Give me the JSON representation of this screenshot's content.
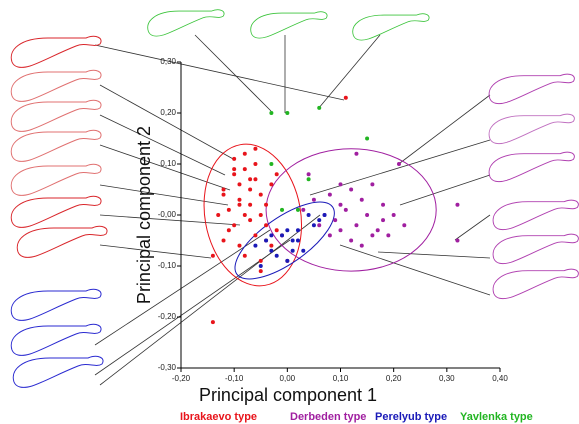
{
  "chart_data": {
    "type": "scatter",
    "xlabel": "Principal component 1",
    "ylabel": "Principal component 2",
    "xlim": [
      -0.2,
      0.4
    ],
    "xticks": [
      {
        "value": -0.2,
        "label": "-0,20"
      },
      {
        "value": -0.1,
        "label": "-0,10"
      },
      {
        "value": 0,
        "label": "0,00"
      },
      {
        "value": 0.1,
        "label": "0,10"
      },
      {
        "value": 0.2,
        "label": "0,20"
      },
      {
        "value": 0.3,
        "label": "0,30"
      },
      {
        "value": 0.4,
        "label": "0,40"
      }
    ],
    "ylim": [
      -0.3,
      0.3
    ],
    "yticks": [
      {
        "value": -0.3,
        "label": "-0,30"
      },
      {
        "value": -0.2,
        "label": "-0,20"
      },
      {
        "value": -0.1,
        "label": "-0,10"
      },
      {
        "value": 0,
        "label": "-0,00"
      },
      {
        "value": 0.1,
        "label": "0,10"
      },
      {
        "value": 0.2,
        "label": "0,20"
      },
      {
        "value": 0.3,
        "label": "0,30"
      }
    ],
    "series": [
      {
        "name": "Ibrakaevo type",
        "color": "#e8141b",
        "x": [
          -0.1,
          -0.08,
          -0.12,
          -0.06,
          -0.09,
          -0.07,
          -0.11,
          -0.05,
          -0.08,
          -0.1,
          -0.04,
          -0.06,
          -0.09,
          -0.12,
          -0.07,
          -0.03,
          -0.08,
          -0.1,
          -0.05,
          -0.11,
          -0.06,
          -0.09,
          -0.04,
          -0.07,
          -0.13,
          -0.02,
          -0.08,
          -0.05,
          -0.1,
          -0.06,
          -0.03,
          -0.09,
          -0.07,
          -0.04,
          -0.12,
          -0.14,
          0.11,
          -0.14,
          -0.01,
          0.0,
          -0.05,
          -0.02
        ],
        "values": [
          0.08,
          0.09,
          0.05,
          0.07,
          0.03,
          0.05,
          0.01,
          0.04,
          0.0,
          -0.02,
          0.02,
          0.1,
          0.06,
          0.04,
          -0.01,
          0.06,
          0.12,
          0.11,
          0.0,
          -0.03,
          -0.04,
          -0.06,
          -0.05,
          0.02,
          0.0,
          0.08,
          -0.08,
          -0.09,
          0.09,
          0.13,
          -0.06,
          0.02,
          0.07,
          -0.02,
          -0.05,
          -0.21,
          0.23,
          -0.08,
          -0.04,
          -0.09,
          -0.11,
          -0.03
        ],
        "ellipse": {
          "cx": -0.065,
          "cy": 0.0,
          "rx": 0.09,
          "ry": 0.14,
          "angle": -10
        }
      },
      {
        "name": "Derbeden type",
        "color": "#a01fa0",
        "x": [
          0.05,
          0.08,
          0.1,
          0.12,
          0.14,
          0.16,
          0.18,
          0.2,
          0.07,
          0.09,
          0.11,
          0.13,
          0.15,
          0.17,
          0.19,
          0.06,
          0.08,
          0.1,
          0.12,
          0.14,
          0.16,
          0.21,
          0.32,
          0.32,
          0.03,
          0.04,
          0.13,
          0.18,
          0.22,
          0.1
        ],
        "values": [
          0.03,
          0.04,
          0.02,
          0.05,
          0.03,
          0.06,
          0.02,
          0.0,
          0.0,
          -0.01,
          0.01,
          -0.02,
          0.0,
          -0.03,
          -0.04,
          -0.02,
          -0.04,
          -0.03,
          -0.05,
          -0.06,
          -0.04,
          0.1,
          0.02,
          -0.05,
          0.01,
          0.08,
          0.12,
          -0.01,
          -0.02,
          0.06
        ],
        "ellipse": {
          "cx": 0.12,
          "cy": 0.01,
          "rx": 0.16,
          "ry": 0.12,
          "angle": 0
        }
      },
      {
        "name": "Perelyub type",
        "color": "#1a1ab8",
        "x": [
          -0.06,
          -0.04,
          -0.03,
          -0.01,
          0.0,
          0.01,
          0.02,
          0.03,
          0.05,
          0.06,
          -0.02,
          0.0,
          0.02,
          -0.05,
          0.04,
          0.07,
          -0.03,
          0.01
        ],
        "values": [
          -0.06,
          -0.05,
          -0.07,
          -0.04,
          -0.03,
          -0.05,
          -0.03,
          -0.07,
          -0.02,
          -0.01,
          -0.08,
          -0.09,
          -0.05,
          -0.1,
          0.0,
          0.0,
          -0.04,
          -0.07
        ],
        "ellipse": {
          "cx": -0.005,
          "cy": -0.05,
          "rx": 0.11,
          "ry": 0.045,
          "angle": -35
        }
      },
      {
        "name": "Yavlenka type",
        "color": "#22b522",
        "x": [
          -0.03,
          0.0,
          0.06,
          0.15,
          -0.03,
          0.04,
          0.02,
          -0.01
        ],
        "values": [
          0.2,
          0.2,
          0.21,
          0.15,
          0.1,
          0.07,
          0.01,
          0.01
        ]
      }
    ]
  }
}
